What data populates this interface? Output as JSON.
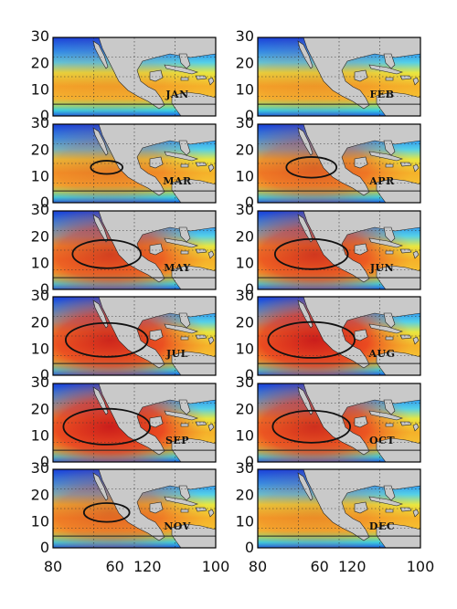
{
  "figure": {
    "y_ticks": [
      "30",
      "20",
      "10",
      "0"
    ],
    "x_ticks": [
      "80",
      "60",
      "120",
      "100"
    ]
  },
  "panels": [
    {
      "month": "JAN",
      "heat": 0.15
    },
    {
      "month": "FEB",
      "heat": 0.18
    },
    {
      "month": "MAR",
      "heat": 0.35
    },
    {
      "month": "APR",
      "heat": 0.55
    },
    {
      "month": "MAY",
      "heat": 0.75
    },
    {
      "month": "JUN",
      "heat": 0.8
    },
    {
      "month": "JUL",
      "heat": 0.9
    },
    {
      "month": "AUG",
      "heat": 0.95
    },
    {
      "month": "SEP",
      "heat": 0.95
    },
    {
      "month": "OCT",
      "heat": 0.85
    },
    {
      "month": "NOV",
      "heat": 0.5
    },
    {
      "month": "DEC",
      "heat": 0.25
    }
  ],
  "colors": {
    "land": "#c9c9c9",
    "coast": "#222222",
    "warm": "#d9261c",
    "cold": "#1a3fd0"
  }
}
